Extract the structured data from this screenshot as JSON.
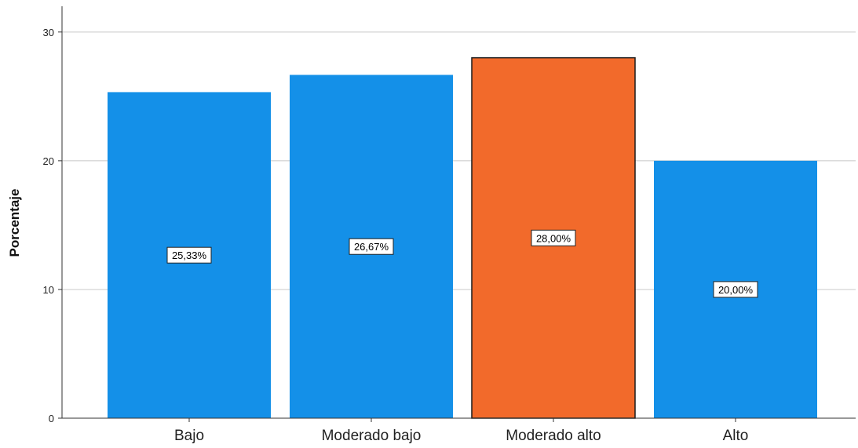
{
  "chart_data": {
    "type": "bar",
    "title": "",
    "xlabel": "",
    "ylabel": "Porcentaje",
    "ylim": [
      0,
      32
    ],
    "yticks": [
      0,
      10,
      20,
      30
    ],
    "grid": true,
    "categories": [
      "Bajo",
      "Moderado bajo",
      "Moderado alto",
      "Alto"
    ],
    "values": [
      25.33,
      26.67,
      28.0,
      20.0
    ],
    "data_labels": [
      "25,33%",
      "26,67%",
      "28,00%",
      "20,00%"
    ],
    "colors": [
      "#1490e8",
      "#1490e8",
      "#f26a2b",
      "#1490e8"
    ],
    "highlighted_category": "Moderado alto",
    "highlight_border_color": "#1a1a1a",
    "grid_color": "#c8c8c8",
    "axis_color": "#333333"
  }
}
